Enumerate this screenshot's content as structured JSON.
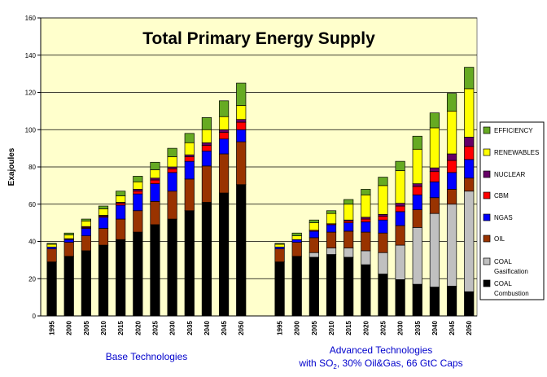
{
  "chart_data": {
    "type": "bar",
    "stacked": true,
    "title": "Total Primary Energy Supply",
    "ylabel": "Exajoules",
    "ylim": [
      0,
      160
    ],
    "yticks": [
      0,
      20,
      40,
      60,
      80,
      100,
      120,
      140,
      160
    ],
    "grid": true,
    "legend_position": "right",
    "colors": {
      "plot_background": "#ffffcc",
      "gridline": "#000000",
      "group_label": "#0000cc"
    },
    "series": [
      {
        "name": "COAL Combustion",
        "label_lines": [
          "COAL",
          "Combustion"
        ],
        "color": "#000000"
      },
      {
        "name": "COAL Gasification",
        "label_lines": [
          "COAL",
          "Gasification"
        ],
        "color": "#c0c0c0"
      },
      {
        "name": "OIL",
        "label_lines": [
          "OIL"
        ],
        "color": "#993300"
      },
      {
        "name": "NGAS",
        "label_lines": [
          "NGAS"
        ],
        "color": "#0000ff"
      },
      {
        "name": "CBM",
        "label_lines": [
          "CBM"
        ],
        "color": "#ff0000"
      },
      {
        "name": "NUCLEAR",
        "label_lines": [
          "NUCLEAR"
        ],
        "color": "#660066"
      },
      {
        "name": "RENEWABLES",
        "label_lines": [
          "RENEWABLES"
        ],
        "color": "#ffff00"
      },
      {
        "name": "EFFICIENCY",
        "label_lines": [
          "EFFICIENCY"
        ],
        "color": "#66aa22"
      }
    ],
    "groups": [
      {
        "label_lines": [
          "Base Technologies"
        ],
        "categories": [
          "1995",
          "2000",
          "2005",
          "2010",
          "2015",
          "2020",
          "2025",
          "2030",
          "2035",
          "2040",
          "2045",
          "2050"
        ],
        "values": {
          "COAL Combustion": [
            29,
            32,
            35,
            38,
            41,
            45,
            49,
            52,
            56.5,
            61,
            66,
            70.5
          ],
          "COAL Gasification": [
            0,
            0,
            0,
            0,
            0,
            0,
            0,
            0,
            0,
            0,
            0,
            0
          ],
          "OIL": [
            7,
            7.5,
            8,
            9,
            11,
            11.5,
            12.5,
            15,
            17,
            19.5,
            21,
            23
          ],
          "NGAS": [
            1,
            1.5,
            4,
            6,
            7.5,
            9,
            9.5,
            10,
            9.5,
            8,
            8,
            6.5
          ],
          "CBM": [
            0,
            0,
            0.5,
            0.5,
            1,
            1.5,
            2,
            2,
            2.5,
            3,
            3.5,
            4
          ],
          "NUCLEAR": [
            0,
            0.5,
            0.5,
            0.5,
            0.5,
            1,
            1,
            1,
            1,
            1.5,
            1.5,
            1.5
          ],
          "RENEWABLES": [
            1.5,
            2,
            3,
            3.5,
            3.5,
            4,
            4.5,
            5.5,
            6.5,
            7,
            7,
            7.5
          ],
          "EFFICIENCY": [
            0.5,
            1,
            1,
            1.5,
            2.5,
            3,
            4,
            4.5,
            5,
            6.5,
            8.5,
            12
          ]
        }
      },
      {
        "label_lines": [
          "Advanced Technologies",
          "with SO2, 30% Oil&Gas, 66 GtC Caps"
        ],
        "categories": [
          "1995",
          "2000",
          "2005",
          "2010",
          "2015",
          "2020",
          "2025",
          "2030",
          "2035",
          "2040",
          "2045",
          "2050"
        ],
        "values": {
          "COAL Combustion": [
            29,
            32,
            31.5,
            33,
            31.5,
            27.5,
            22.5,
            19.5,
            17,
            15.5,
            16,
            13
          ],
          "COAL Gasification": [
            0,
            0,
            2.5,
            3.5,
            5,
            7.5,
            11.5,
            18.5,
            30.5,
            39.5,
            44,
            54
          ],
          "OIL": [
            7,
            7.5,
            8,
            8.5,
            9,
            10,
            10.5,
            10.5,
            9.5,
            8.5,
            8,
            7
          ],
          "NGAS": [
            1,
            1.5,
            3.5,
            4,
            4.5,
            5.5,
            7,
            7.5,
            8,
            8.5,
            9,
            10
          ],
          "CBM": [
            0,
            0,
            0.5,
            0.5,
            1,
            1.5,
            2,
            3,
            4.5,
            5.5,
            6.5,
            7
          ],
          "NUCLEAR": [
            0,
            0,
            0,
            0,
            0.5,
            1,
            1,
            1.5,
            1.5,
            2,
            3.5,
            5
          ],
          "RENEWABLES": [
            1.5,
            2,
            4,
            5.5,
            8.5,
            12,
            15.5,
            17.5,
            18.5,
            21.5,
            23,
            26
          ],
          "EFFICIENCY": [
            0.5,
            1.5,
            1.5,
            1.5,
            2.5,
            3,
            4.5,
            5,
            7,
            8,
            9.5,
            11.5
          ]
        }
      }
    ]
  }
}
